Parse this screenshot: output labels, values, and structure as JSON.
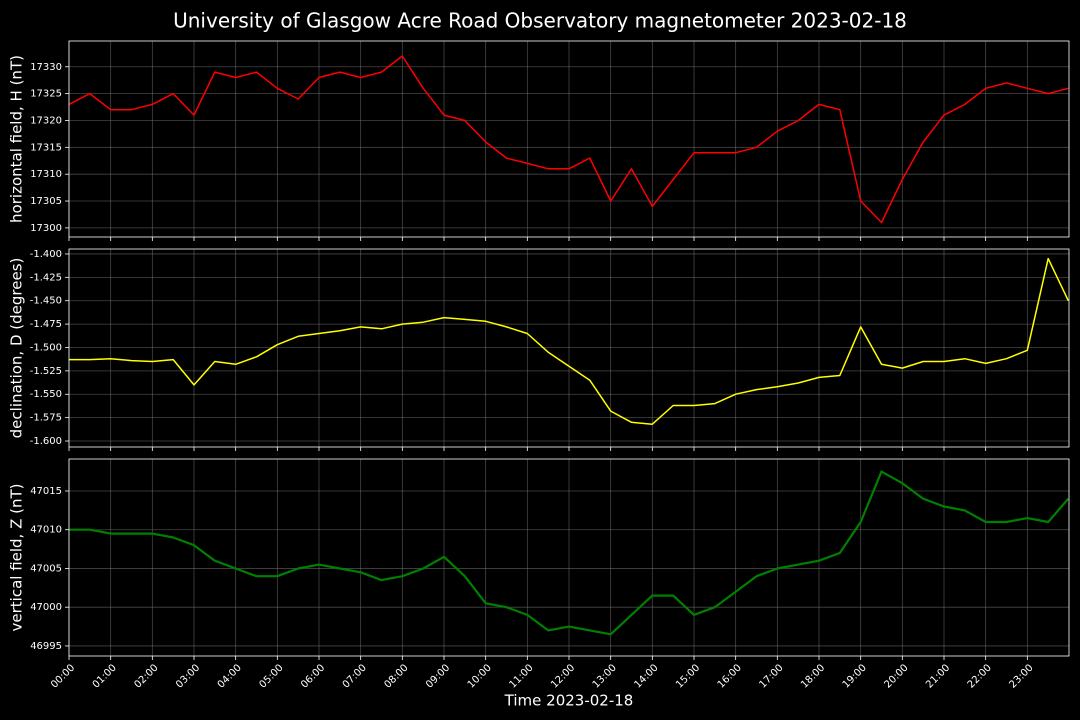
{
  "chart_data": [
    {
      "type": "line",
      "title": "University of Glasgow Acre Road Observatory magnetometer 2023-02-18",
      "ylabel": "horizontal field, H (nT)",
      "color": "#ff0000",
      "values": [
        17323,
        17325,
        17322,
        17322,
        17323,
        17325,
        17321,
        17329,
        17328,
        17329,
        17326,
        17324,
        17328,
        17329,
        17328,
        17329,
        17332,
        17326,
        17321,
        17320,
        17316,
        17313,
        17312,
        17311,
        17311,
        17313,
        17305,
        17311,
        17304,
        17309,
        17314,
        17314,
        17314,
        17315,
        17318,
        17320,
        17323,
        17322,
        17305,
        17301,
        17309,
        17316,
        17321,
        17323,
        17326,
        17327,
        17326,
        17325,
        17326
      ],
      "ylim": [
        17298.3,
        17334.8
      ],
      "yticks": [
        17300,
        17305,
        17310,
        17315,
        17320,
        17325,
        17330
      ],
      "grid": true
    },
    {
      "type": "line",
      "ylabel": "declination, D (degrees)",
      "color": "#ffff00",
      "values": [
        -1.513,
        -1.513,
        -1.512,
        -1.514,
        -1.515,
        -1.513,
        -1.54,
        -1.515,
        -1.518,
        -1.51,
        -1.497,
        -1.488,
        -1.485,
        -1.482,
        -1.478,
        -1.48,
        -1.475,
        -1.473,
        -1.468,
        -1.47,
        -1.472,
        -1.478,
        -1.485,
        -1.505,
        -1.52,
        -1.535,
        -1.568,
        -1.58,
        -1.582,
        -1.562,
        -1.562,
        -1.56,
        -1.55,
        -1.545,
        -1.542,
        -1.538,
        -1.532,
        -1.53,
        -1.478,
        -1.518,
        -1.522,
        -1.515,
        -1.515,
        -1.512,
        -1.517,
        -1.512,
        -1.503,
        -1.405,
        -1.45
      ],
      "ylim": [
        -1.6064,
        -1.3947
      ],
      "yticks": [
        {
          "value": -1.6,
          "label": "-1.600"
        },
        {
          "value": -1.575,
          "label": "-1.575"
        },
        {
          "value": -1.55,
          "label": "-1.550"
        },
        {
          "value": -1.525,
          "label": "-1.525"
        },
        {
          "value": -1.5,
          "label": "-1.500"
        },
        {
          "value": -1.475,
          "label": "-1.475"
        },
        {
          "value": -1.45,
          "label": "-1.450"
        },
        {
          "value": -1.425,
          "label": "-1.425"
        },
        {
          "value": -1.4,
          "label": "-1.400"
        }
      ],
      "grid": true
    },
    {
      "type": "line",
      "ylabel": "vertical field, Z (nT)",
      "xlabel": "Time 2023-02-18",
      "color": "#008000",
      "x": [
        "00:00",
        "00:30",
        "01:00",
        "01:30",
        "02:00",
        "02:30",
        "03:00",
        "03:30",
        "04:00",
        "04:30",
        "05:00",
        "05:30",
        "06:00",
        "06:30",
        "07:00",
        "07:30",
        "08:00",
        "08:30",
        "09:00",
        "09:30",
        "10:00",
        "10:30",
        "11:00",
        "11:30",
        "12:00",
        "12:30",
        "13:00",
        "13:30",
        "14:00",
        "14:30",
        "15:00",
        "15:30",
        "16:00",
        "16:30",
        "17:00",
        "17:30",
        "18:00",
        "18:30",
        "19:00",
        "19:30",
        "20:00",
        "20:30",
        "21:00",
        "21:30",
        "22:00",
        "22:30",
        "23:00",
        "23:30",
        "23:59"
      ],
      "values": [
        47010,
        47010,
        47009.5,
        47009.5,
        47009.5,
        47009,
        47008,
        47006,
        47005,
        47004,
        47004,
        47005,
        47005.5,
        47005,
        47004.5,
        47003.5,
        47004,
        47005,
        47006.5,
        47004,
        47000.5,
        47000,
        46999,
        46997,
        46997.5,
        46997,
        46996.5,
        46999,
        47001.5,
        47001.5,
        46999,
        47000,
        47002,
        47004,
        47005,
        47005.5,
        47006,
        47007,
        47011,
        47017.5,
        47016,
        47014,
        47013,
        47012.5,
        47011,
        47011,
        47011.5,
        47011,
        47014
      ],
      "ylim": [
        46993.7,
        47019.13
      ],
      "yticks": [
        46995,
        47000,
        47005,
        47010,
        47015
      ],
      "xlim": [
        "00:00",
        "24:00"
      ],
      "xticks": [
        "00:00",
        "01:00",
        "02:00",
        "03:00",
        "04:00",
        "05:00",
        "06:00",
        "07:00",
        "08:00",
        "09:00",
        "10:00",
        "11:00",
        "12:00",
        "13:00",
        "14:00",
        "15:00",
        "16:00",
        "17:00",
        "18:00",
        "19:00",
        "20:00",
        "21:00",
        "22:00",
        "23:00"
      ],
      "grid": true
    }
  ]
}
